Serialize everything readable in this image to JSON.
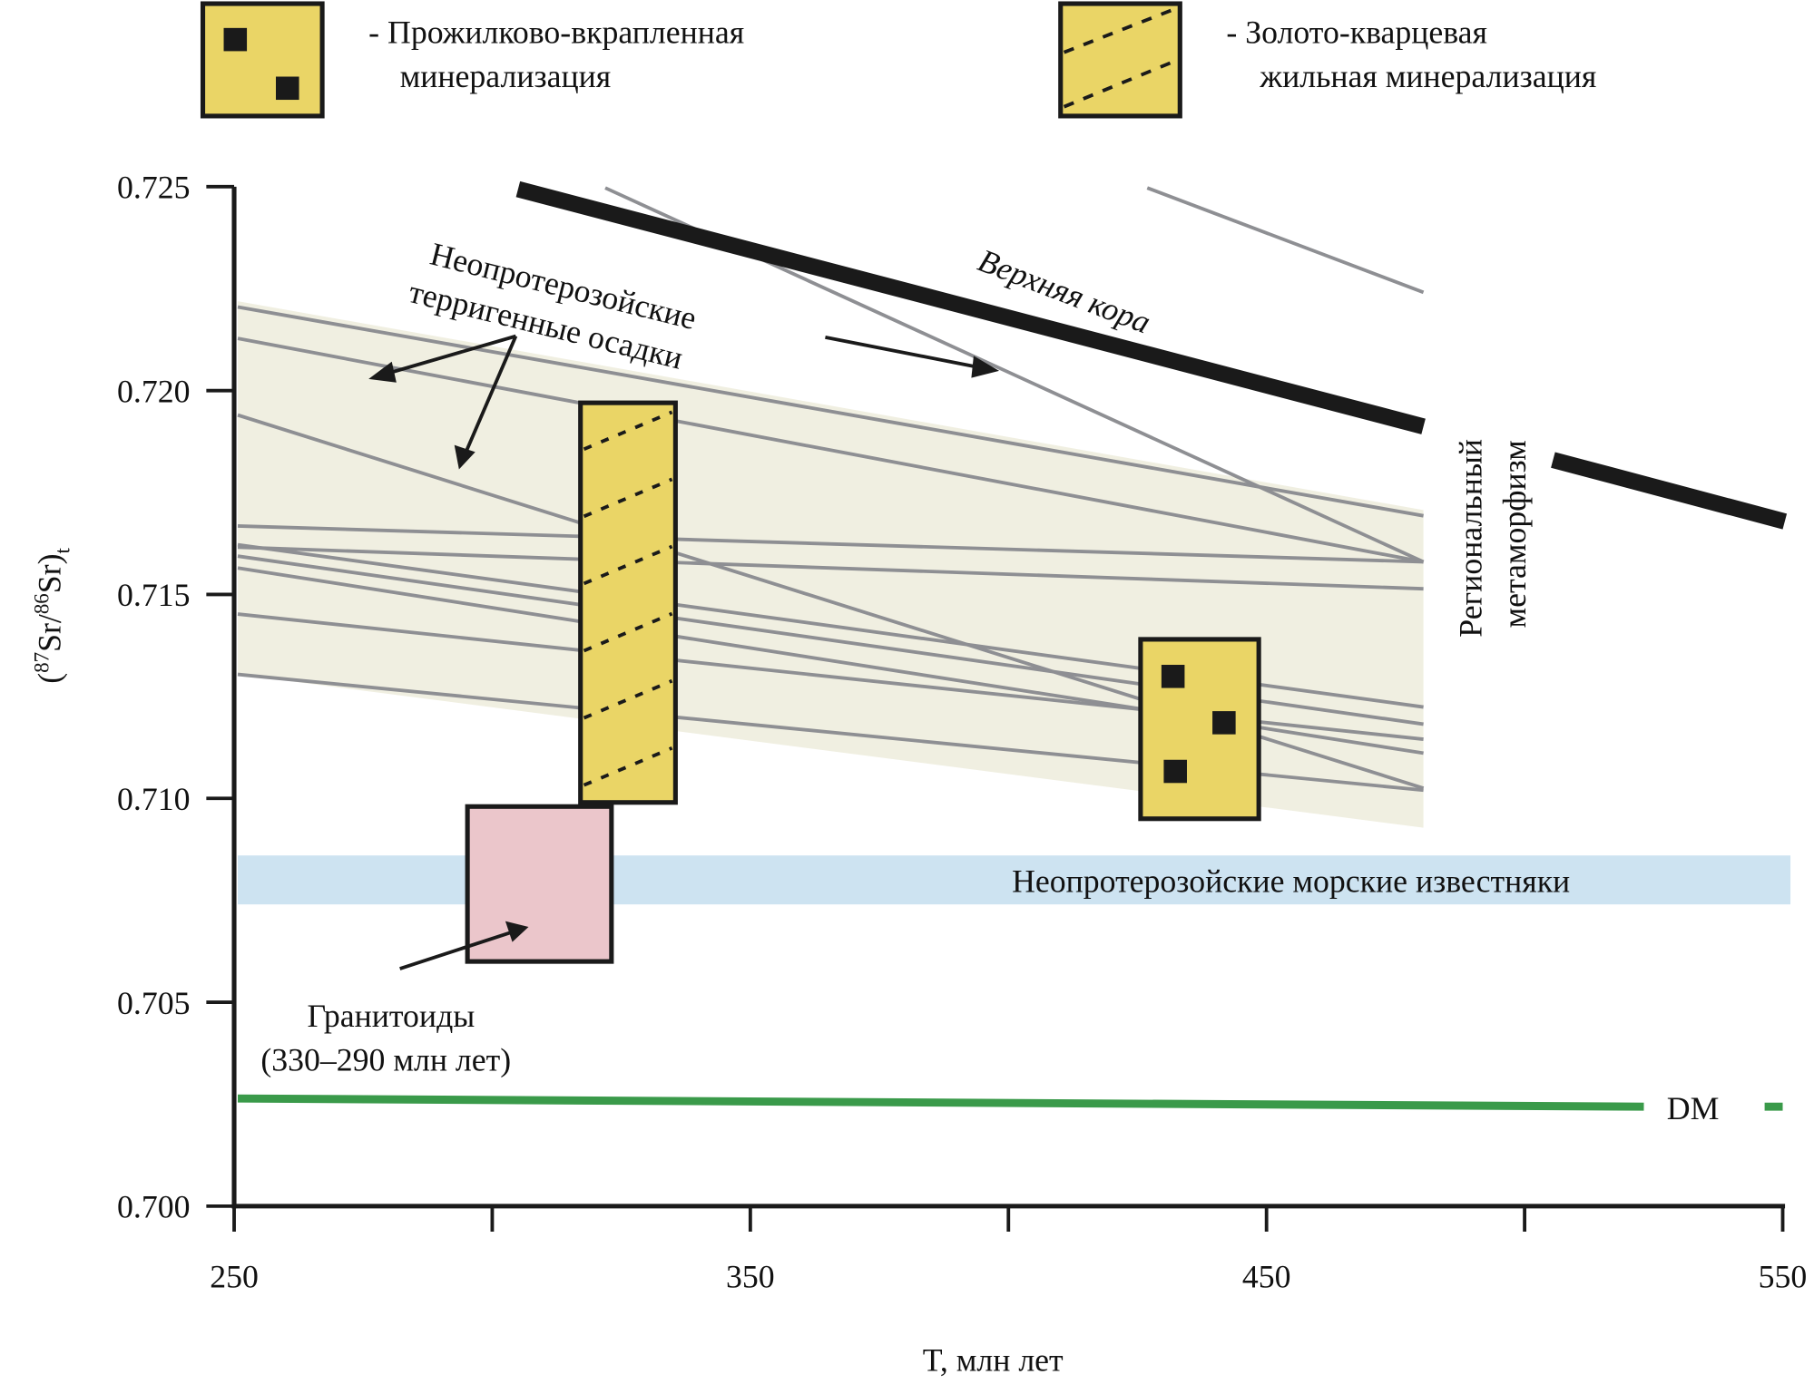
{
  "legend": [
    {
      "label_line1": "- Прожилково-вкрапленная",
      "label_line2": "минерализация",
      "pattern": "squares"
    },
    {
      "label_line1": "- Золото-кварцевая",
      "label_line2": "жильная минерализация",
      "pattern": "dashed-diagonal"
    }
  ],
  "chart_data": {
    "type": "line",
    "xlabel": "T, млн лет",
    "ylabel_parts": [
      "(",
      "87",
      "Sr/",
      "86",
      "Sr)",
      "t"
    ],
    "xlim": [
      250,
      550
    ],
    "ylim": [
      0.7,
      0.725
    ],
    "x_ticks": [
      250,
      300,
      350,
      400,
      450,
      500,
      550
    ],
    "x_tick_labels": [
      "250",
      "",
      "350",
      "",
      "450",
      "",
      "550"
    ],
    "y_ticks": [
      0.7,
      0.705,
      0.71,
      0.715,
      0.72,
      0.725
    ],
    "y_tick_labels": [
      "0.700",
      "0.705",
      "0.710",
      "0.715",
      "0.720",
      "0.725"
    ],
    "grid": false,
    "terrigenous_field": {
      "points": [
        [
          250.7,
          0.72219
        ],
        [
          480.4,
          0.71707
        ],
        [
          480.4,
          0.70928
        ],
        [
          250.7,
          0.71304
        ]
      ],
      "color": "#f0efe1"
    },
    "evolution_lines": [
      [
        250.7,
        0.72205,
        480.4,
        0.71693
      ],
      [
        250.7,
        0.72128,
        480.4,
        0.7158
      ],
      [
        250.7,
        0.7194,
        480.4,
        0.71025
      ],
      [
        250.7,
        0.71668,
        480.4,
        0.7158
      ],
      [
        250.7,
        0.71616,
        480.4,
        0.71514
      ],
      [
        250.7,
        0.71594,
        480.4,
        0.71182
      ],
      [
        250.7,
        0.71565,
        480.4,
        0.71111
      ],
      [
        250.7,
        0.71452,
        480.4,
        0.71145
      ],
      [
        250.7,
        0.71304,
        480.4,
        0.7102
      ],
      [
        250.7,
        0.71622,
        480.4,
        0.71224
      ],
      [
        321.9,
        0.72497,
        480.4,
        0.7158
      ],
      [
        426.9,
        0.72497,
        480.4,
        0.72241
      ]
    ],
    "upper_crust": {
      "label": "Верхняя кора",
      "segments": [
        [
          305.0,
          0.72494,
          480.4,
          0.71912
        ],
        [
          505.5,
          0.7183,
          550.4,
          0.71679
        ]
      ],
      "color": "#1a1a1a"
    },
    "marine_limestones": {
      "label": "Неопротерозойские морские известняки",
      "x": [
        250.7,
        551.5
      ],
      "y": [
        0.7074,
        0.7086
      ],
      "color": "#cde3f1"
    },
    "dm": {
      "label": "DM",
      "segments": [
        [
          250.7,
          0.70264,
          523.1,
          0.70244
        ],
        [
          546.5,
          0.70244,
          550.0,
          0.70244
        ]
      ],
      "color": "#3a9a4a"
    },
    "granitoids": {
      "label_line1": "Гранитоиды",
      "label_line2": "(330–290 млн лет)",
      "x": [
        295.2,
        323.1
      ],
      "y": [
        0.706,
        0.7098
      ],
      "color": "#ebc6cb"
    },
    "vein_box": {
      "x": [
        317.1,
        335.5
      ],
      "y": [
        0.7099,
        0.7197
      ],
      "color": "#ead566"
    },
    "disseminated_box": {
      "x": [
        425.6,
        448.5
      ],
      "y": [
        0.7095,
        0.7139
      ],
      "color": "#ead566"
    },
    "annotations": {
      "terrigenous_line1": "Неопротерозойские",
      "terrigenous_line2": "терригенные осадки",
      "metamorphism_line1": "Региональный",
      "metamorphism_line2": "метаморфизм"
    }
  }
}
